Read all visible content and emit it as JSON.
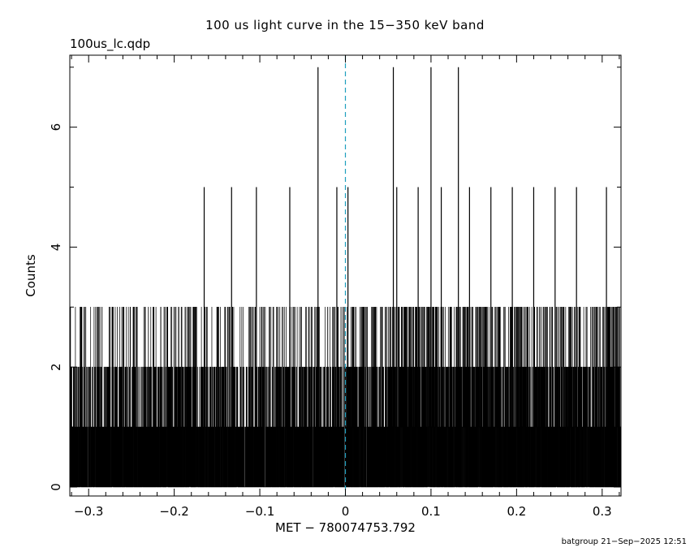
{
  "title": "100 us light curve in the 15−350 keV band",
  "file_label": "100us_lc.qdp",
  "footer": "batgroup 21−Sep−2025 12:51",
  "chart_data": {
    "type": "histogram-step",
    "xlabel": "MET − 780074753.792",
    "ylabel": "Counts",
    "xlim": [
      -0.322,
      0.322
    ],
    "ylim": [
      -0.15,
      7.2
    ],
    "x_ticks": [
      -0.3,
      -0.2,
      -0.1,
      0,
      0.1,
      0.2,
      0.3
    ],
    "x_tick_labels": [
      "−0.3",
      "−0.2",
      "−0.1",
      "0",
      "0.1",
      "0.2",
      "0.3"
    ],
    "y_ticks": [
      0,
      2,
      4,
      6
    ],
    "y_tick_labels": [
      "0",
      "2",
      "4",
      "6"
    ],
    "bin_width": 0.0001,
    "trigger_line": {
      "x": 0,
      "color": "#1f9fbf",
      "style": "dashed"
    },
    "line_color": "#000000",
    "peak_markers": [
      {
        "x": -0.032,
        "counts": 7
      },
      {
        "x": 0.056,
        "counts": 7
      },
      {
        "x": 0.1,
        "counts": 7
      },
      {
        "x": 0.132,
        "counts": 7
      },
      {
        "x": -0.165,
        "counts": 5
      },
      {
        "x": -0.133,
        "counts": 5
      },
      {
        "x": -0.104,
        "counts": 5
      },
      {
        "x": -0.065,
        "counts": 5
      },
      {
        "x": -0.01,
        "counts": 5
      },
      {
        "x": 0.003,
        "counts": 5
      },
      {
        "x": 0.06,
        "counts": 5
      },
      {
        "x": 0.085,
        "counts": 5
      },
      {
        "x": 0.112,
        "counts": 5
      },
      {
        "x": 0.145,
        "counts": 5
      },
      {
        "x": 0.17,
        "counts": 5
      },
      {
        "x": 0.195,
        "counts": 5
      },
      {
        "x": 0.22,
        "counts": 5
      },
      {
        "x": 0.245,
        "counts": 5
      },
      {
        "x": 0.27,
        "counts": 5
      },
      {
        "x": 0.305,
        "counts": 5
      }
    ]
  }
}
